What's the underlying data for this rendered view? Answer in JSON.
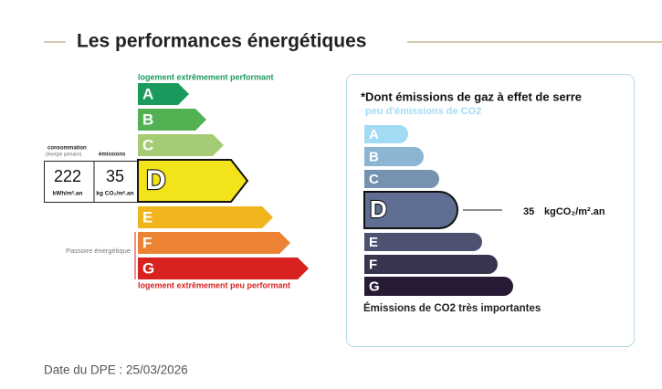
{
  "header": {
    "title": "Les performances énergétiques"
  },
  "energy": {
    "top_label": "logement extrêmement performant",
    "bottom_label": "logement extrêmement peu performant",
    "grades": [
      "A",
      "B",
      "C",
      "D",
      "E",
      "F",
      "G"
    ],
    "colors": [
      "#1a9a5c",
      "#52b153",
      "#a5cc74",
      "#f2e31b",
      "#f0b41c",
      "#ec8234",
      "#d7221f"
    ],
    "current": "D",
    "consumption_label": "consommation",
    "consumption_sub": "(énergie primaire)",
    "emissions_label": "émissions",
    "consumption_value": 222,
    "consumption_unit": "kWh/m².an",
    "emissions_value": 35,
    "emissions_unit": "kg CO₂/m².an",
    "passoire": "Passoire énergétique"
  },
  "ghg": {
    "title": "*Dont émissions de gaz à effet de serre",
    "top_label": "peu d'émissions de CO2",
    "grades": [
      "A",
      "B",
      "C",
      "D",
      "E",
      "F",
      "G"
    ],
    "colors": [
      "#a3dbf5",
      "#8cb4d3",
      "#7692b1",
      "#5f6e92",
      "#4d5271",
      "#393551",
      "#281b35"
    ],
    "current": "D",
    "value": 35,
    "unit": "kgCO₂/m².an",
    "bottom_label": "Émissions de CO2 très importantes"
  },
  "footer": {
    "date": "Date du DPE : 25/03/2026"
  }
}
